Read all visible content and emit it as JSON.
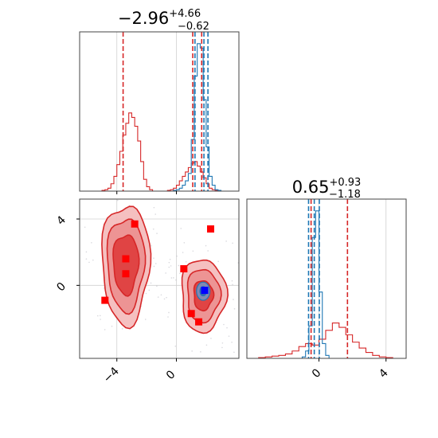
{
  "colors": {
    "red": "#d62728",
    "blue": "#1f77b4",
    "marker_red": "#ff0000",
    "marker_blue": "#0000ff",
    "grid": "#d0d0d0",
    "frame": "#444444"
  },
  "chart_data": [
    {
      "type": "histogram",
      "panel": "top-left marginal",
      "title": {
        "main": "−2.96",
        "sup": "+4.66",
        "sub": "−0.62"
      },
      "xlim": [
        -6.5,
        4.2
      ],
      "grid": true,
      "series": [
        {
          "name": "",
          "color": "#d62728",
          "bins": [
            -5.0,
            -4.8,
            -4.6,
            -4.4,
            -4.2,
            -4.0,
            -3.8,
            -3.6,
            -3.4,
            -3.2,
            -3.0,
            -2.8,
            -2.6,
            -2.4,
            -2.2,
            -2.0,
            -1.8,
            -1.6,
            -1.4,
            -1.2,
            -1.0,
            -0.8,
            -0.6,
            -0.4,
            -0.2,
            0.0,
            0.2,
            0.4,
            0.6,
            0.8,
            1.0,
            1.2,
            1.4,
            1.6,
            1.8,
            2.0,
            2.2,
            2.4,
            2.6,
            2.8,
            3.0,
            3.2,
            3.4,
            3.6,
            3.8
          ],
          "counts": [
            0.005,
            0.01,
            0.02,
            0.05,
            0.1,
            0.18,
            0.27,
            0.38,
            0.46,
            0.53,
            0.5,
            0.44,
            0.34,
            0.2,
            0.08,
            0.03,
            0.01,
            0.0,
            0.0,
            0.0,
            0.0,
            0.0,
            0.005,
            0.01,
            0.02,
            0.04,
            0.07,
            0.1,
            0.13,
            0.16,
            0.19,
            0.2,
            0.17,
            0.13,
            0.09,
            0.05,
            0.02,
            0.01,
            0.005,
            0.0,
            0.0,
            0.0,
            0.0,
            0.0
          ],
          "quantiles": [
            -3.58,
            1.1,
            1.7
          ]
        },
        {
          "name": "",
          "color": "#1f77b4",
          "bins": [
            -0.4,
            -0.2,
            0.0,
            0.2,
            0.4,
            0.6,
            0.8,
            1.0,
            1.2,
            1.4,
            1.6,
            1.8,
            2.0,
            2.2,
            2.4,
            2.6,
            2.8,
            3.0,
            3.2,
            3.4
          ],
          "counts": [
            0.0,
            0.005,
            0.01,
            0.02,
            0.04,
            0.07,
            0.12,
            0.35,
            0.78,
            1.0,
            0.97,
            0.62,
            0.3,
            0.1,
            0.04,
            0.01,
            0.005,
            0.0,
            0.0
          ],
          "quantiles": [
            1.25,
            1.85,
            2.12
          ]
        }
      ]
    },
    {
      "type": "scatter",
      "panel": "bottom-left 2D",
      "xlim": [
        -6.5,
        4.2
      ],
      "ylim": [
        -4.4,
        5.2
      ],
      "xticks": [
        -4,
        0
      ],
      "xtick_labels": [
        "−4",
        "0"
      ],
      "yticks": [
        0,
        4
      ],
      "ytick_labels": [
        "0",
        "4"
      ],
      "grid": true,
      "contours_red": [
        {
          "cx": -3.4,
          "cy": 1.3,
          "levels": [
            [
              1.6,
              3.6
            ],
            [
              1.25,
              2.8
            ],
            [
              0.85,
              1.8
            ]
          ]
        },
        {
          "cx": 1.8,
          "cy": -0.6,
          "levels": [
            [
              1.5,
              2.2
            ],
            [
              1.1,
              1.6
            ],
            [
              0.65,
              0.9
            ]
          ]
        }
      ],
      "contours_blue": [
        {
          "cx": 1.8,
          "cy": -0.35,
          "levels": [
            [
              0.45,
              0.55
            ],
            [
              0.22,
              0.28
            ]
          ]
        }
      ],
      "red_markers": [
        [
          -2.8,
          3.7
        ],
        [
          -3.4,
          1.6
        ],
        [
          -3.4,
          0.7
        ],
        [
          -4.8,
          -0.9
        ],
        [
          0.5,
          1.0
        ],
        [
          2.3,
          3.4
        ],
        [
          1.0,
          -1.7
        ],
        [
          1.5,
          -2.2
        ]
      ],
      "blue_markers": [
        [
          1.9,
          -0.3
        ]
      ]
    },
    {
      "type": "histogram",
      "panel": "bottom-right marginal",
      "title": {
        "main": "0.65",
        "sup": "+0.93",
        "sub": "−1.18"
      },
      "xlim": [
        -4.3,
        5.2
      ],
      "xticks": [
        0,
        4
      ],
      "xtick_labels": [
        "0",
        "4"
      ],
      "grid": true,
      "series": [
        {
          "name": "",
          "color": "#d62728",
          "bins": [
            -4.0,
            -3.6,
            -3.2,
            -2.8,
            -2.4,
            -2.0,
            -1.6,
            -1.2,
            -0.8,
            -0.4,
            0.0,
            0.4,
            0.8,
            1.2,
            1.6,
            2.0,
            2.4,
            2.8,
            3.2,
            3.6,
            4.0,
            4.4,
            4.8
          ],
          "counts": [
            0.0,
            0.005,
            0.01,
            0.015,
            0.02,
            0.03,
            0.05,
            0.08,
            0.1,
            0.09,
            0.13,
            0.19,
            0.24,
            0.21,
            0.16,
            0.11,
            0.07,
            0.04,
            0.02,
            0.01,
            0.005,
            0.0
          ],
          "quantiles": [
            -0.47,
            1.7
          ]
        },
        {
          "name": "",
          "color": "#1f77b4",
          "bins": [
            -1.2,
            -1.0,
            -0.8,
            -0.6,
            -0.4,
            -0.2,
            0.0,
            0.2,
            0.4,
            0.6,
            0.8
          ],
          "counts": [
            0.0,
            0.01,
            0.05,
            0.22,
            0.82,
            1.0,
            0.45,
            0.1,
            0.02,
            0.0
          ],
          "quantiles": [
            -0.62,
            -0.28,
            0.02
          ]
        }
      ]
    }
  ]
}
